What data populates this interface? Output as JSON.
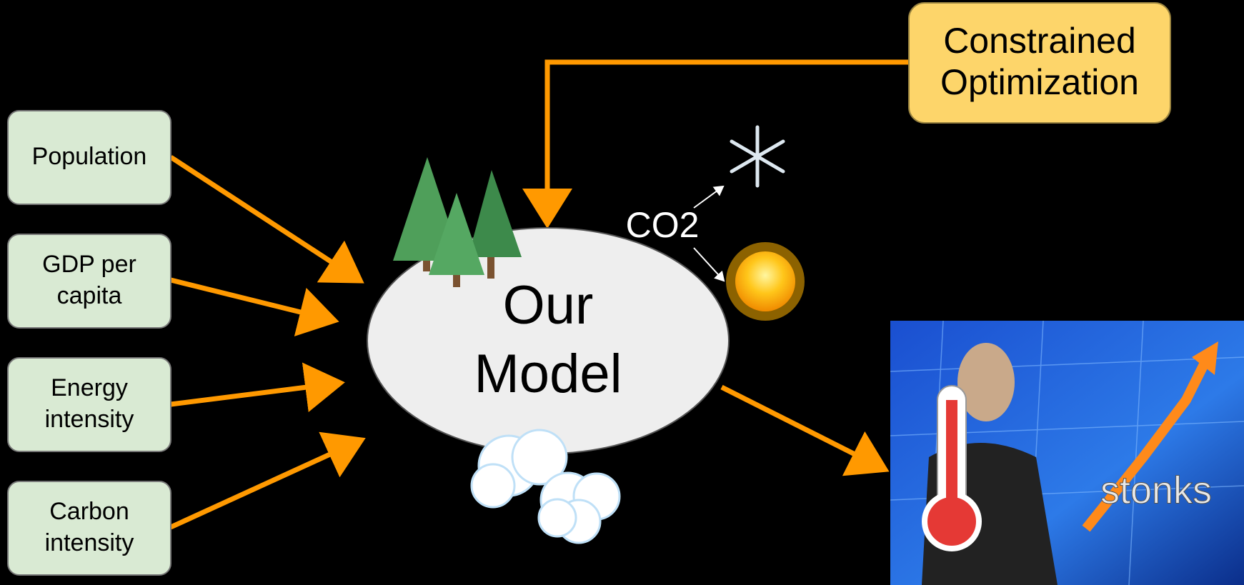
{
  "inputs": [
    {
      "lines": [
        "Population"
      ]
    },
    {
      "lines": [
        "GDP per",
        "capita"
      ]
    },
    {
      "lines": [
        "Energy",
        "intensity"
      ]
    },
    {
      "lines": [
        "Carbon",
        "intensity"
      ]
    }
  ],
  "model": {
    "lines": [
      "Our",
      "Model"
    ]
  },
  "optimizer": {
    "lines": [
      "Constrained",
      "Optimization"
    ]
  },
  "emission": "CO2",
  "meme": "stonks"
}
